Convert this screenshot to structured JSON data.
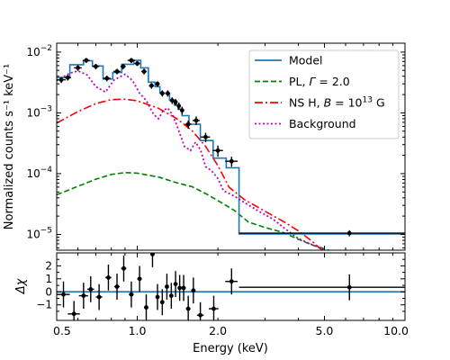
{
  "chart_data": [
    {
      "type": "line",
      "panel": "spectrum",
      "ylabel": "Normalized counts s⁻¹ keV⁻¹",
      "xscale": "log",
      "yscale": "log",
      "xlim": [
        0.5,
        10.0
      ],
      "ylim": [
        5.5e-06,
        0.014
      ],
      "ytick_labels": [
        {
          "value": 1e-05,
          "base": "10",
          "exp": "−5"
        },
        {
          "value": 0.0001,
          "base": "10",
          "exp": "−4"
        },
        {
          "value": 0.001,
          "base": "10",
          "exp": "−3"
        },
        {
          "value": 0.01,
          "base": "10",
          "exp": "−2"
        }
      ],
      "legend": {
        "placement": "upper right",
        "entries": [
          {
            "series": "model",
            "label": "Model"
          },
          {
            "series": "pl",
            "parts": [
              {
                "t": "PL, "
              },
              {
                "t": "Γ",
                "i": true
              },
              {
                "t": " = 2.0"
              }
            ]
          },
          {
            "series": "nsh",
            "parts": [
              {
                "t": "NS H, "
              },
              {
                "t": "B",
                "i": true
              },
              {
                "t": " = 10"
              },
              {
                "t": "13",
                "sup": true
              },
              {
                "t": " G"
              }
            ]
          },
          {
            "series": "bkg",
            "label": "Background"
          }
        ]
      },
      "model_steps": {
        "color": "#1f77b4",
        "edges": [
          0.5,
          0.56,
          0.63,
          0.68,
          0.745,
          0.81,
          0.875,
          0.97,
          1.03,
          1.1,
          1.165,
          1.215,
          1.275,
          1.32,
          1.375,
          1.42,
          1.47,
          1.56,
          1.72,
          1.92,
          2.15,
          2.4,
          10.0
        ],
        "values": [
          0.0038,
          0.0062,
          0.0072,
          0.0059,
          0.0036,
          0.0046,
          0.0063,
          0.0073,
          0.0055,
          0.0032,
          0.0027,
          0.0021,
          0.0021,
          0.0016,
          0.00135,
          0.00115,
          0.0009,
          0.00065,
          0.00035,
          0.00018,
          0.000125,
          1.02e-05
        ]
      },
      "series": [
        {
          "key": "pl",
          "color": "#008000",
          "dash": "dashed",
          "x": [
            0.5,
            0.6,
            0.7,
            0.8,
            0.9,
            1.0,
            1.2,
            1.4,
            1.6,
            1.8,
            2.0,
            2.3,
            2.6,
            3.0,
            3.5,
            4.0,
            4.5,
            5.0,
            5.2
          ],
          "y": [
            4.5e-05,
            6.2e-05,
            8.1e-05,
            9.7e-05,
            0.000104,
            0.000102,
            8.8e-05,
            7.1e-05,
            6.1e-05,
            4.7e-05,
            3.6e-05,
            2.5e-05,
            1.6e-05,
            1.3e-05,
            1.08e-05,
            8.3e-06,
            6.7e-06,
            5.8e-06,
            5.5e-06
          ]
        },
        {
          "key": "nsh",
          "color": "#ff0000",
          "dash": "dashdot",
          "x": [
            0.5,
            0.6,
            0.7,
            0.8,
            0.9,
            1.0,
            1.2,
            1.4,
            1.6,
            1.8,
            2.0,
            2.2,
            2.5,
            3.0,
            3.5,
            4.0,
            4.5,
            4.9
          ],
          "y": [
            0.00068,
            0.00105,
            0.00142,
            0.00165,
            0.00168,
            0.00158,
            0.00119,
            0.00081,
            0.00051,
            0.00028,
            0.000135,
            6e-05,
            3.8e-05,
            2.4e-05,
            1.65e-05,
            1.14e-05,
            7.7e-06,
            5.5e-06
          ]
        },
        {
          "key": "bkg",
          "color": "#bf00bf",
          "dash": "dotted",
          "x": [
            0.5,
            0.56,
            0.6,
            0.65,
            0.7,
            0.76,
            0.82,
            0.9,
            0.96,
            1.02,
            1.08,
            1.15,
            1.2,
            1.25,
            1.3,
            1.36,
            1.42,
            1.5,
            1.58,
            1.65,
            1.72,
            1.8,
            1.9,
            2.0,
            2.1,
            2.3,
            2.5,
            2.8,
            3.2,
            3.6,
            4.0,
            4.5,
            5.0
          ],
          "y": [
            0.0034,
            0.0045,
            0.0049,
            0.0042,
            0.0027,
            0.0022,
            0.0035,
            0.0043,
            0.0034,
            0.0021,
            0.0016,
            0.00095,
            0.0008,
            0.0011,
            0.0012,
            0.0009,
            0.00055,
            0.00028,
            0.00024,
            0.00033,
            0.00025,
            0.00013,
            0.00011,
            8.3e-05,
            5.2e-05,
            4.3e-05,
            3.4e-05,
            2.5e-05,
            1.8e-05,
            1.2e-05,
            8.5e-06,
            6.8e-06,
            5.5e-06
          ]
        }
      ],
      "points": [
        {
          "x": 0.52,
          "y": 0.0035,
          "yerr": 0.0004,
          "xerr": [
            0.02,
            0.02
          ]
        },
        {
          "x": 0.55,
          "y": 0.0038,
          "yerr": 0.0004,
          "xerr": [
            0.015,
            0.015
          ]
        },
        {
          "x": 0.6,
          "y": 0.0055,
          "yerr": 0.0006,
          "xerr": [
            0.02,
            0.02
          ]
        },
        {
          "x": 0.645,
          "y": 0.0073,
          "yerr": 0.0007,
          "xerr": [
            0.02,
            0.02
          ]
        },
        {
          "x": 0.7,
          "y": 0.0058,
          "yerr": 0.0006,
          "xerr": [
            0.02,
            0.02
          ]
        },
        {
          "x": 0.77,
          "y": 0.0037,
          "yerr": 0.0004,
          "xerr": [
            0.025,
            0.025
          ]
        },
        {
          "x": 0.84,
          "y": 0.0048,
          "yerr": 0.0005,
          "xerr": [
            0.025,
            0.025
          ]
        },
        {
          "x": 0.885,
          "y": 0.0058,
          "yerr": 0.0006,
          "xerr": [
            0.02,
            0.02
          ]
        },
        {
          "x": 0.95,
          "y": 0.0073,
          "yerr": 0.0007,
          "xerr": [
            0.03,
            0.03
          ]
        },
        {
          "x": 1.0,
          "y": 0.0065,
          "yerr": 0.0006,
          "xerr": [
            0.025,
            0.025
          ]
        },
        {
          "x": 1.06,
          "y": 0.0048,
          "yerr": 0.0005,
          "xerr": [
            0.025,
            0.025
          ]
        },
        {
          "x": 1.13,
          "y": 0.0028,
          "yerr": 0.0003,
          "xerr": [
            0.025,
            0.025
          ]
        },
        {
          "x": 1.19,
          "y": 0.003,
          "yerr": 0.0003,
          "xerr": [
            0.02,
            0.02
          ]
        },
        {
          "x": 1.24,
          "y": 0.0021,
          "yerr": 0.00025,
          "xerr": [
            0.02,
            0.02
          ]
        },
        {
          "x": 1.3,
          "y": 0.0021,
          "yerr": 0.00025,
          "xerr": [
            0.02,
            0.02
          ]
        },
        {
          "x": 1.35,
          "y": 0.0016,
          "yerr": 0.0002,
          "xerr": [
            0.02,
            0.02
          ]
        },
        {
          "x": 1.39,
          "y": 0.0015,
          "yerr": 0.0002,
          "xerr": [
            0.02,
            0.02
          ]
        },
        {
          "x": 1.43,
          "y": 0.0013,
          "yerr": 0.00018,
          "xerr": [
            0.02,
            0.02
          ]
        },
        {
          "x": 1.47,
          "y": 0.0011,
          "yerr": 0.00016,
          "xerr": [
            0.02,
            0.02
          ]
        },
        {
          "x": 1.55,
          "y": 0.00065,
          "yerr": 0.0001,
          "xerr": [
            0.04,
            0.04
          ]
        },
        {
          "x": 1.66,
          "y": 0.00075,
          "yerr": 0.00012,
          "xerr": [
            0.05,
            0.05
          ]
        },
        {
          "x": 1.8,
          "y": 0.0004,
          "yerr": 7e-05,
          "xerr": [
            0.07,
            0.07
          ]
        },
        {
          "x": 2.0,
          "y": 0.00024,
          "yerr": 5e-05,
          "xerr": [
            0.09,
            0.09
          ]
        },
        {
          "x": 2.25,
          "y": 0.00016,
          "yerr": 3e-05,
          "xerr": [
            0.12,
            0.12
          ]
        },
        {
          "x": 6.2,
          "y": 1.05e-05,
          "yerr": 1.2e-06,
          "xerr": [
            3.8,
            3.8
          ]
        }
      ]
    },
    {
      "type": "line",
      "panel": "residuals",
      "xlabel": "Energy (keV)",
      "ylabel": "Δχ",
      "xscale": "log",
      "xlim": [
        0.5,
        10.0
      ],
      "ylim": [
        -2.2,
        3.0
      ],
      "yticks": [
        -1,
        0,
        1,
        2
      ],
      "ytick_labels": [
        "−1",
        "0",
        "1",
        "2"
      ],
      "xticks": [
        0.5,
        1.0,
        2.0,
        5.0,
        10.0
      ],
      "xtick_labels": [
        "0.5",
        "1.0",
        "2.0",
        "5.0",
        "10.0"
      ],
      "zero_line_color": "#1f77b4",
      "points": [
        {
          "x": 0.53,
          "y": -0.2,
          "yerr": 1.0,
          "xerr": [
            0.03,
            0.03
          ]
        },
        {
          "x": 0.58,
          "y": -1.7,
          "yerr": 1.0,
          "xerr": [
            0.03,
            0.03
          ]
        },
        {
          "x": 0.63,
          "y": -0.3,
          "yerr": 1.0,
          "xerr": [
            0.025,
            0.025
          ]
        },
        {
          "x": 0.67,
          "y": 0.2,
          "yerr": 1.0,
          "xerr": [
            0.02,
            0.02
          ]
        },
        {
          "x": 0.72,
          "y": -0.4,
          "yerr": 1.0,
          "xerr": [
            0.02,
            0.02
          ]
        },
        {
          "x": 0.78,
          "y": 1.1,
          "yerr": 1.0,
          "xerr": [
            0.02,
            0.02
          ]
        },
        {
          "x": 0.84,
          "y": 0.4,
          "yerr": 1.0,
          "xerr": [
            0.02,
            0.02
          ]
        },
        {
          "x": 0.89,
          "y": 1.8,
          "yerr": 1.0,
          "xerr": [
            0.02,
            0.02
          ]
        },
        {
          "x": 0.95,
          "y": -0.2,
          "yerr": 1.0,
          "xerr": [
            0.02,
            0.02
          ]
        },
        {
          "x": 1.02,
          "y": 1.0,
          "yerr": 1.0,
          "xerr": [
            0.02,
            0.02
          ]
        },
        {
          "x": 1.08,
          "y": -1.2,
          "yerr": 1.0,
          "xerr": [
            0.02,
            0.02
          ]
        },
        {
          "x": 1.14,
          "y": 2.9,
          "yerr": 1.0,
          "xerr": [
            0.02,
            0.02
          ]
        },
        {
          "x": 1.19,
          "y": -0.4,
          "yerr": 1.0,
          "xerr": [
            0.02,
            0.02
          ]
        },
        {
          "x": 1.24,
          "y": -0.8,
          "yerr": 1.0,
          "xerr": [
            0.02,
            0.02
          ]
        },
        {
          "x": 1.29,
          "y": 0.4,
          "yerr": 1.0,
          "xerr": [
            0.02,
            0.02
          ]
        },
        {
          "x": 1.34,
          "y": -0.3,
          "yerr": 1.0,
          "xerr": [
            0.02,
            0.02
          ]
        },
        {
          "x": 1.39,
          "y": 0.6,
          "yerr": 1.0,
          "xerr": [
            0.02,
            0.02
          ]
        },
        {
          "x": 1.44,
          "y": 0.3,
          "yerr": 1.0,
          "xerr": [
            0.02,
            0.02
          ]
        },
        {
          "x": 1.49,
          "y": 0.3,
          "yerr": 1.0,
          "xerr": [
            0.02,
            0.02
          ]
        },
        {
          "x": 1.55,
          "y": -1.3,
          "yerr": 1.0,
          "xerr": [
            0.03,
            0.03
          ]
        },
        {
          "x": 1.62,
          "y": 0.1,
          "yerr": 1.0,
          "xerr": [
            0.03,
            0.03
          ]
        },
        {
          "x": 1.72,
          "y": -1.8,
          "yerr": 1.0,
          "xerr": [
            0.05,
            0.05
          ]
        },
        {
          "x": 1.93,
          "y": -1.3,
          "yerr": 1.0,
          "xerr": [
            0.08,
            0.08
          ]
        },
        {
          "x": 2.25,
          "y": 0.8,
          "yerr": 1.0,
          "xerr": [
            0.12,
            0.12
          ]
        },
        {
          "x": 6.2,
          "y": 0.35,
          "yerr": 1.0,
          "xerr": [
            3.8,
            3.8
          ]
        }
      ]
    }
  ]
}
